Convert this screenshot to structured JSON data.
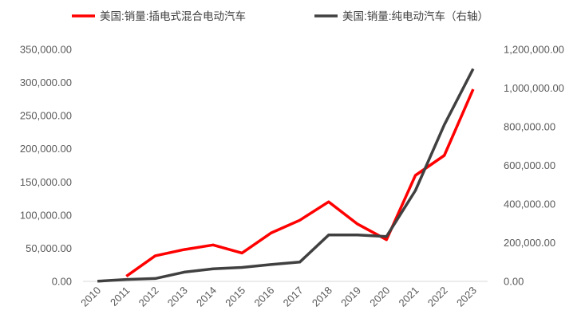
{
  "chart_data": {
    "type": "line",
    "categories": [
      "2010",
      "2011",
      "2012",
      "2013",
      "2014",
      "2015",
      "2016",
      "2017",
      "2018",
      "2019",
      "2020",
      "2021",
      "2022",
      "2023"
    ],
    "series": [
      {
        "name": "美国:销量:插电式混合电动汽车",
        "axis": "left",
        "color": "#ff0000",
        "values": [
          null,
          7700,
          38600,
          48000,
          55000,
          42800,
          72900,
          92200,
          120000,
          86500,
          62900,
          160000,
          190000,
          290000
        ]
      },
      {
        "name": "美国:销量:纯电动汽车（右轴）",
        "axis": "right",
        "color": "#404040",
        "values": [
          1000,
          10000,
          15000,
          48000,
          65000,
          72000,
          87000,
          100000,
          240000,
          240000,
          232000,
          470000,
          810000,
          1100000
        ]
      }
    ],
    "y_left": {
      "min": 0,
      "max": 350000,
      "step": 50000,
      "tick_labels": [
        "0.00",
        "50,000.00",
        "100,000.00",
        "150,000.00",
        "200,000.00",
        "250,000.00",
        "300,000.00",
        "350,000.00"
      ]
    },
    "y_right": {
      "min": 0,
      "max": 1200000,
      "step": 200000,
      "tick_labels": [
        "0.00",
        "200,000.00",
        "400,000.00",
        "600,000.00",
        "800,000.00",
        "1,000,000.00",
        "1,200,000.00"
      ]
    },
    "xlabel": "",
    "ylabel": "",
    "grid": false,
    "legend_position": "top"
  }
}
